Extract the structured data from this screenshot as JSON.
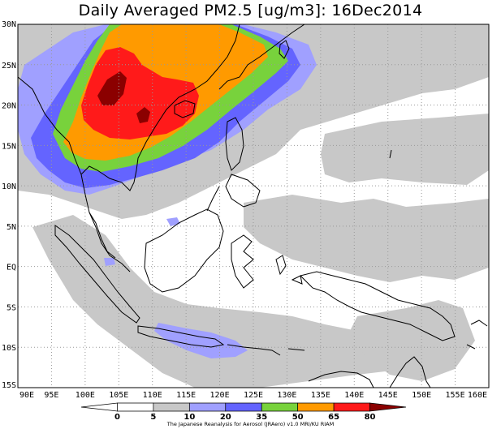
{
  "title": "Daily Averaged PM2.5 [ug/m3]: 16Dec2014",
  "credit": "The Japanese Reanalysis for Aerosol (JRAero) v1.0 MRI/KU RIAM",
  "axes": {
    "lon_labels": [
      "90E",
      "95E",
      "100E",
      "105E",
      "110E",
      "115E",
      "120E",
      "125E",
      "130E",
      "135E",
      "140E",
      "145E",
      "150E",
      "155E",
      "160E"
    ],
    "lat_labels": [
      "30N",
      "25N",
      "20N",
      "15N",
      "10N",
      "5N",
      "EQ",
      "5S",
      "10S",
      "15S"
    ],
    "lon_range": [
      90,
      160
    ],
    "lat_range": [
      -15,
      30
    ],
    "grid": true
  },
  "colorbar": {
    "labels": [
      "0",
      "5",
      "10",
      "20",
      "35",
      "50",
      "65",
      "80"
    ],
    "colors": [
      "#ffffff",
      "#ffffff",
      "#c8c8c8",
      "#a0a0ff",
      "#6464ff",
      "#78d23c",
      "#ff9a00",
      "#ff1a1a",
      "#8b0000"
    ]
  },
  "shading": {
    "gray": "#c8c8c8",
    "light_blue": "#a0a0ff",
    "blue": "#6464ff",
    "green": "#78d23c",
    "orange": "#ff9a00",
    "red": "#ff1a1a",
    "dark_red": "#8b0000"
  }
}
